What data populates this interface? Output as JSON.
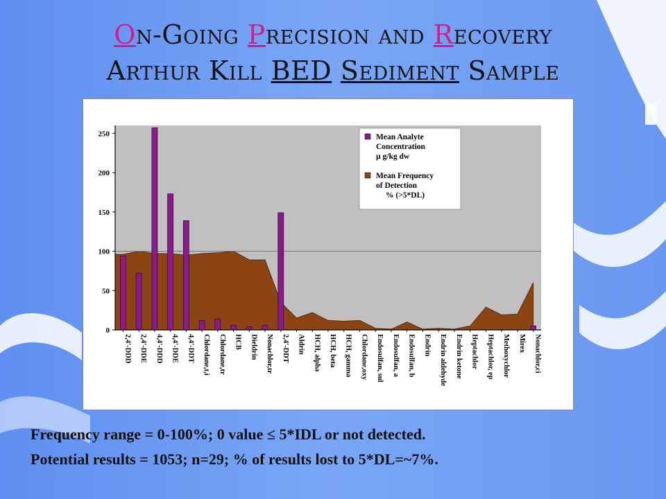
{
  "slide": {
    "title_line1": {
      "w1_first": "O",
      "w1_rest": "n-Going",
      "w2_first": "P",
      "w2_rest": "recision",
      "w3": "and",
      "w4_first": "R",
      "w4_rest": "ecovery"
    },
    "title_line2": {
      "w1": "Arthur Kill",
      "w2": "BED",
      "w3": "Sediment",
      "w4": "Sample"
    },
    "caption_line1": "Frequency range = 0-100%;  0 value ≤ 5*IDL or not detected.",
    "caption_line2": "Potential results = 1053; n=29; % of results lost to 5*DL=~7%."
  },
  "colors": {
    "background": "#6f9cf2",
    "accent_letter": "#d21d8a",
    "plot_area": "#c0c0c0",
    "bar": "#8b1a8b",
    "area": "#8b4513"
  },
  "chart_data": {
    "type": "bar",
    "ylim": [
      0,
      260
    ],
    "yticks": [
      0,
      50,
      100,
      150,
      200,
      250
    ],
    "reference_line": 100,
    "categories": [
      "2,4'-DDD",
      "2,4'-DDE",
      "4,4'-DDD",
      "4,4'-DDE",
      "4,4'-DDT",
      "Chlordane,t,i",
      "Chlordane,tr",
      "HCB",
      "Dieldrin",
      "Nonachlor,tr",
      "2,4'-DDT",
      "Aldrin",
      "HCH, alpha",
      "HCH, beta",
      "HCH, gamma",
      "Chlordane,oxy",
      "Endosulfan, sul",
      "Endosulfan, a",
      "Endosulfan, b",
      "Endrin",
      "Endrin aldehyde",
      "Endrin ketone",
      "Heptachlor",
      "Heptachlor, ep",
      "Methoxychlor",
      "Mirex",
      "Nonachlor,ci"
    ],
    "series": [
      {
        "name": "Mean Analyte Concentration µ g/kg dw",
        "kind": "bar",
        "values": [
          94,
          72,
          257,
          173,
          139,
          12,
          14,
          6,
          4,
          6,
          149,
          0,
          0,
          0,
          0,
          0,
          0,
          0,
          0,
          0,
          0,
          0,
          0,
          0,
          0,
          0,
          5
        ]
      },
      {
        "name": "Mean Frequency of Detection % (>5*DL)",
        "kind": "area",
        "values": [
          96,
          100,
          97,
          97,
          95,
          97,
          98,
          100,
          89,
          89,
          35,
          15,
          22,
          12,
          11,
          12,
          2,
          1,
          10,
          1,
          2,
          1,
          5,
          29,
          19,
          20,
          60
        ]
      }
    ],
    "legend": {
      "position": "top-right",
      "bar_label": [
        "Mean Analyte",
        "Concentration",
        "µ g/kg dw"
      ],
      "area_label": [
        "Mean Frequency",
        "of Detection",
        "% (>5*DL)"
      ]
    }
  }
}
